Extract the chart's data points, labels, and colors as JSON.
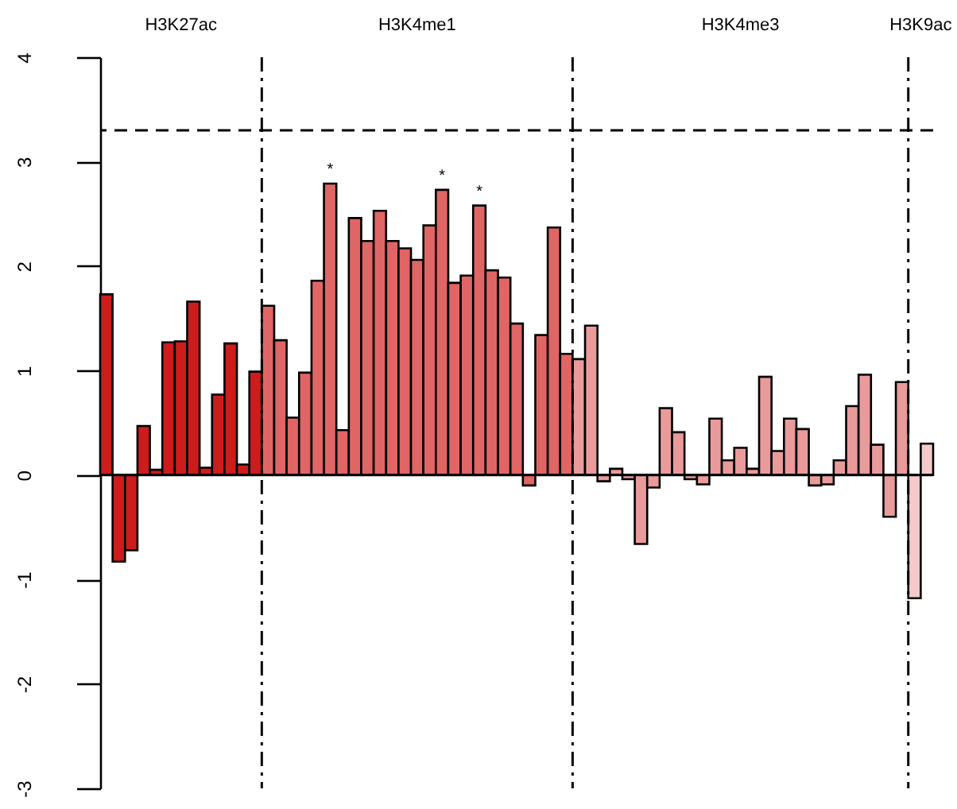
{
  "chart_data": {
    "type": "bar",
    "tick_labels": "y",
    "categories": [
      null,
      null,
      null,
      null,
      null,
      null,
      null,
      null,
      null,
      null,
      null,
      null,
      null,
      null,
      null,
      null,
      null,
      null,
      null,
      null,
      null,
      null,
      null,
      null,
      null,
      null,
      null,
      null,
      null,
      null,
      null,
      null,
      null,
      null,
      null,
      null,
      null,
      null,
      null,
      null,
      null,
      null,
      null,
      null,
      null,
      null,
      null,
      null,
      null,
      null,
      null,
      null,
      null,
      null,
      null,
      null,
      null,
      null,
      null,
      null,
      null,
      null,
      null,
      null,
      null,
      null,
      null
    ],
    "values": [
      1.73,
      -0.83,
      -0.72,
      0.47,
      0.05,
      1.27,
      1.28,
      1.66,
      0.07,
      0.77,
      1.26,
      0.1,
      0.99,
      1.62,
      1.29,
      0.55,
      0.98,
      1.86,
      2.79,
      0.43,
      2.46,
      2.24,
      2.53,
      2.24,
      2.17,
      2.06,
      2.39,
      2.73,
      1.84,
      1.91,
      2.58,
      1.96,
      1.89,
      1.45,
      -0.1,
      1.34,
      2.37,
      1.16,
      1.11,
      1.43,
      -0.06,
      0.06,
      -0.04,
      -0.66,
      -0.12,
      0.64,
      0.41,
      -0.04,
      -0.09,
      0.54,
      0.14,
      0.26,
      0.06,
      0.94,
      0.23,
      0.54,
      0.44,
      -0.1,
      -0.09,
      0.14,
      0.66,
      0.96,
      0.29,
      -0.4,
      0.89,
      -1.18,
      0.3
    ],
    "colors": [
      "#cc1c1c",
      "#cc1c1c",
      "#cc1c1c",
      "#cc1c1c",
      "#cc1c1c",
      "#cc1c1c",
      "#cc1c1c",
      "#cc1c1c",
      "#cc1c1c",
      "#cc1c1c",
      "#cc1c1c",
      "#cc1c1c",
      "#cc1c1c",
      "#e06565",
      "#e06565",
      "#e06565",
      "#e06565",
      "#e06565",
      "#e06565",
      "#e06565",
      "#e06565",
      "#e06565",
      "#e06565",
      "#e06565",
      "#e06565",
      "#e06565",
      "#e06565",
      "#e06565",
      "#e06565",
      "#e06565",
      "#e06565",
      "#e06565",
      "#e06565",
      "#e06565",
      "#e06565",
      "#e06565",
      "#e06565",
      "#e06565",
      "#e99a9a",
      "#e99a9a",
      "#e99a9a",
      "#e99a9a",
      "#e99a9a",
      "#e99a9a",
      "#e99a9a",
      "#e99a9a",
      "#e99a9a",
      "#e99a9a",
      "#e99a9a",
      "#e99a9a",
      "#e99a9a",
      "#e99a9a",
      "#e99a9a",
      "#e99a9a",
      "#e99a9a",
      "#e99a9a",
      "#e99a9a",
      "#e99a9a",
      "#e99a9a",
      "#e99a9a",
      "#e99a9a",
      "#e99a9a",
      "#e99a9a",
      "#e99a9a",
      "#e99a9a",
      "#f3c9c9",
      "#f3c9c9"
    ],
    "ylim": [
      -3,
      4
    ],
    "yticks": [
      -3,
      -2,
      -1,
      0,
      1,
      2,
      3,
      4
    ],
    "ref_lines": [
      {
        "axis": "y",
        "value": 0,
        "line_style": "solid"
      },
      {
        "axis": "y",
        "value": 3.3,
        "line_style": "dashed"
      }
    ],
    "value_labels": [
      null,
      null,
      null,
      null,
      null,
      null,
      null,
      null,
      null,
      null,
      null,
      null,
      null,
      null,
      null,
      null,
      null,
      null,
      "*",
      null,
      null,
      null,
      null,
      null,
      null,
      null,
      null,
      "*",
      null,
      null,
      "*",
      null,
      null,
      null,
      null,
      null,
      null,
      null,
      null,
      null,
      null,
      null,
      null,
      null,
      null,
      null,
      null,
      null,
      null,
      null,
      null,
      null,
      null,
      null,
      null,
      null,
      null,
      null,
      null,
      null,
      null,
      null,
      null,
      null,
      null,
      null,
      null
    ],
    "annotations": [
      "H3K27ac",
      "H3K4me1",
      "H3K4me3",
      "H3K9ac"
    ]
  }
}
